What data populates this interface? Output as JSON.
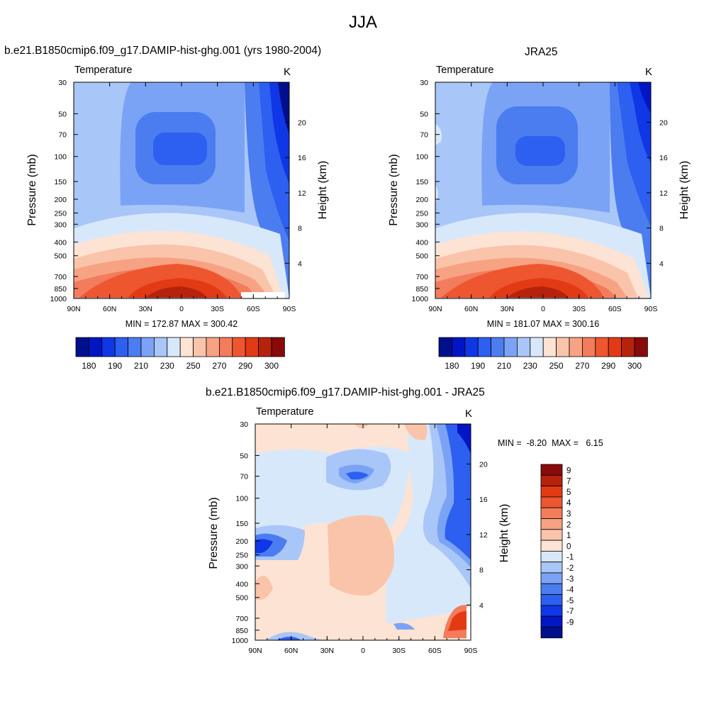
{
  "figure_title": "JJA",
  "colors": {
    "temperature_scale": [
      "#000f8c",
      "#0016c4",
      "#0f37e6",
      "#2d5ff0",
      "#4b7df0",
      "#7ba3f5",
      "#a9c6f8",
      "#d8e8fb",
      "#fde3d3",
      "#fac4aa",
      "#f7a283",
      "#f27c5c",
      "#ee5630",
      "#e23a15",
      "#b6230c",
      "#880a0a"
    ],
    "difference_scale": [
      "#000f8c",
      "#0016c4",
      "#0f37e6",
      "#2d5ff0",
      "#4b7df0",
      "#7ba3f5",
      "#a9c6f8",
      "#d8e8fb",
      "#fde3d3",
      "#fac4aa",
      "#f7a283",
      "#f27c5c",
      "#ee5630",
      "#e23a15",
      "#b6230c",
      "#880a0a"
    ]
  },
  "chart_data": [
    {
      "type": "heatmap",
      "title": "b.e21.B1850cmip6.f09_g17.DAMIP-hist-ghg.001 (yrs 1980-2004)",
      "subtitle_left": "Temperature",
      "subtitle_right": "K",
      "ylabel": "Pressure (mb)",
      "y2label": "Height (km)",
      "x_ticks": [
        "90N",
        "60N",
        "30N",
        "0",
        "30S",
        "60S",
        "90S"
      ],
      "y_ticks": [
        "30",
        "50",
        "70",
        "100",
        "150",
        "200",
        "250",
        "300",
        "400",
        "500",
        "700",
        "850",
        "1000"
      ],
      "y2_ticks": [
        "20",
        "16",
        "12",
        "8",
        "4"
      ],
      "stats": "MIN = 172.87  MAX = 300.42",
      "colorbar_labels": [
        "180",
        "190",
        "210",
        "230",
        "250",
        "270",
        "290",
        "300"
      ],
      "min": 172.87,
      "max": 300.42
    },
    {
      "type": "heatmap",
      "title": "JRA25",
      "subtitle_left": "Temperature",
      "subtitle_right": "K",
      "ylabel": "Pressure (mb)",
      "y2label": "Height (km)",
      "x_ticks": [
        "90N",
        "60N",
        "30N",
        "0",
        "30S",
        "60S",
        "90S"
      ],
      "y_ticks": [
        "30",
        "50",
        "70",
        "100",
        "150",
        "200",
        "250",
        "300",
        "400",
        "500",
        "700",
        "850",
        "1000"
      ],
      "y2_ticks": [
        "20",
        "16",
        "12",
        "8",
        "4"
      ],
      "stats": "MIN = 181.07  MAX = 300.16",
      "colorbar_labels": [
        "180",
        "190",
        "210",
        "230",
        "250",
        "270",
        "290",
        "300"
      ],
      "min": 181.07,
      "max": 300.16
    },
    {
      "type": "heatmap",
      "title": "b.e21.B1850cmip6.f09_g17.DAMIP-hist-ghg.001 - JRA25",
      "subtitle_left": "Temperature",
      "subtitle_right": "K",
      "ylabel": "Pressure (mb)",
      "y2label": "Height (km)",
      "x_ticks": [
        "90N",
        "60N",
        "30N",
        "0",
        "30S",
        "60S",
        "90S"
      ],
      "y_ticks": [
        "30",
        "50",
        "70",
        "100",
        "150",
        "200",
        "250",
        "300",
        "400",
        "500",
        "700",
        "850",
        "1000"
      ],
      "y2_ticks": [
        "20",
        "16",
        "12",
        "8",
        "4"
      ],
      "stats": "MIN =  -8.20  MAX =   6.15",
      "colorbar_labels": [
        "9",
        "7",
        "5",
        "4",
        "3",
        "2",
        "1",
        "0",
        "-1",
        "-2",
        "-3",
        "-4",
        "-5",
        "-7",
        "-9"
      ],
      "min": -8.2,
      "max": 6.15
    }
  ]
}
